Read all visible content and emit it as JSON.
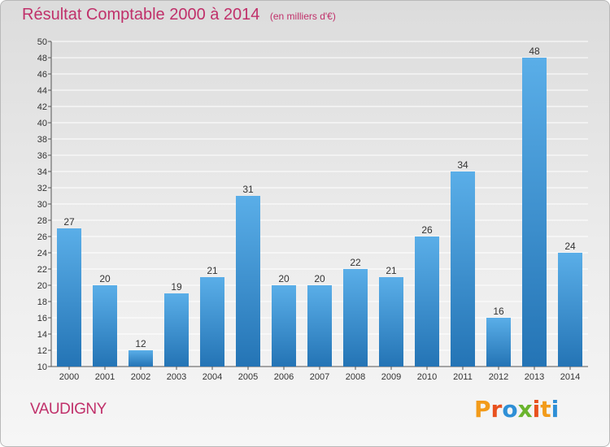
{
  "title": "Résultat Comptable 2000 à 2014",
  "subtitle": "(en milliers d'€)",
  "commune": "VAUDIGNY",
  "logo": {
    "letters": [
      "P",
      "r",
      "o",
      "x",
      "i",
      "t",
      "i"
    ],
    "colors": [
      "#f29b1a",
      "#e8511f",
      "#2e8fd6",
      "#6ab42d",
      "#e8511f",
      "#f29b1a",
      "#2e8fd6"
    ]
  },
  "colors": {
    "title": "#c0306a",
    "bar_light": "#5aaee8",
    "bar_dark": "#2474b5",
    "grid": "#ffffff",
    "axis": "#555555"
  },
  "chart_data": {
    "type": "bar",
    "categories": [
      "2000",
      "2001",
      "2002",
      "2003",
      "2004",
      "2005",
      "2006",
      "2007",
      "2008",
      "2009",
      "2010",
      "2011",
      "2012",
      "2013",
      "2014"
    ],
    "values": [
      27,
      20,
      12,
      19,
      21,
      31,
      20,
      20,
      22,
      21,
      26,
      34,
      16,
      48,
      24
    ],
    "title": "Résultat Comptable 2000 à 2014",
    "subtitle": "(en milliers d'€)",
    "xlabel": "",
    "ylabel": "",
    "ylim": [
      10,
      50
    ],
    "ytick_step": 2,
    "grid": true,
    "data_labels": true
  }
}
